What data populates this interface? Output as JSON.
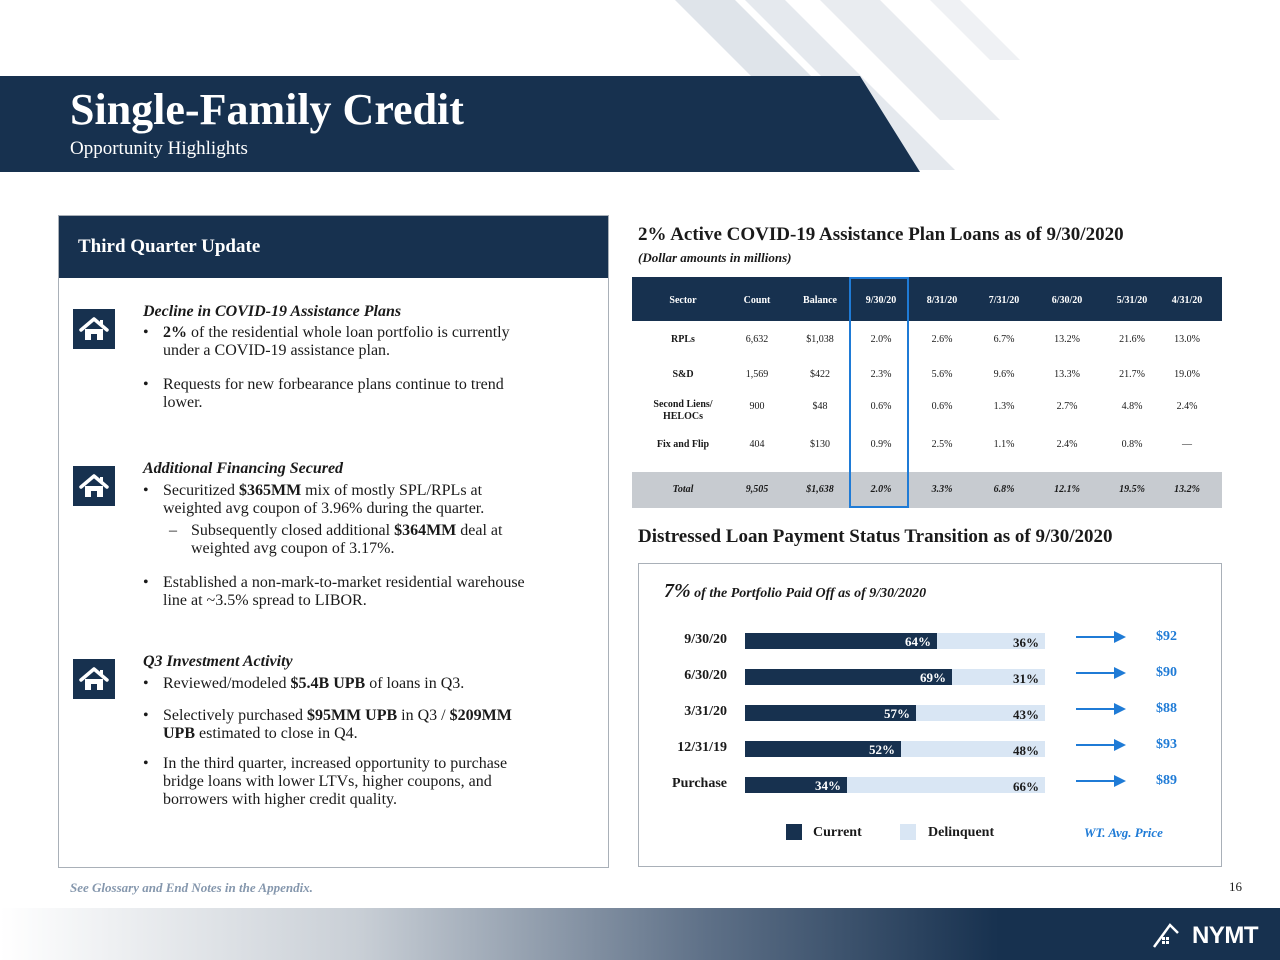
{
  "header": {
    "title": "Single-Family Credit",
    "subtitle": "Opportunity Highlights"
  },
  "left_panel": {
    "title": "Third Quarter Update",
    "sections": [
      {
        "title": "Decline in COVID-19 Assistance Plans",
        "icon": "home-icon",
        "b1_bold": "2%",
        "b1_rest": " of the residential whole loan portfolio is currently",
        "b1_line2": "under a COVID-19 assistance plan.",
        "b2_line1": "Requests for new forbearance plans continue to trend",
        "b2_line2": "lower."
      },
      {
        "title": "Additional Financing Secured",
        "icon": "home-icon",
        "b1_pre": "Securitized ",
        "b1_bold": "$365MM",
        "b1_rest": " mix of mostly SPL/RPLs at",
        "b1_line2": "weighted avg coupon of 3.96% during the quarter.",
        "s1_pre": "Subsequently closed additional ",
        "s1_bold": "$364MM",
        "s1_rest": " deal at",
        "s1_line2": "weighted avg coupon of 3.17%.",
        "b2_line1": "Established a non-mark-to-market residential warehouse",
        "b2_line2": "line at ~3.5% spread to LIBOR."
      },
      {
        "title": "Q3 Investment Activity",
        "icon": "home-icon",
        "b1_pre": "Reviewed/modeled ",
        "b1_bold": "$5.4B UPB",
        "b1_rest": " of loans in Q3.",
        "b2_pre": "Selectively purchased ",
        "b2_bold": "$95MM UPB",
        "b2_mid": " in Q3 / ",
        "b2_bold2": "$209MM",
        "b2_line2_bold": "UPB",
        "b2_line2_rest": " estimated to close in Q4.",
        "b3_line1": "In the third quarter, increased opportunity to purchase",
        "b3_line2": "bridge loans with lower LTVs, higher coupons, and",
        "b3_line3": "borrowers with higher credit quality."
      }
    ],
    "bullet": "•",
    "dash": "–"
  },
  "table": {
    "title": "2% Active COVID-19 Assistance Plan Loans as of 9/30/2020",
    "subtitle": "(Dollar amounts in millions)",
    "columns": [
      "Sector",
      "Count",
      "Balance",
      "9/30/20",
      "8/31/20",
      "7/31/20",
      "6/30/20",
      "5/31/20",
      "4/31/20"
    ],
    "rows": [
      [
        "RPLs",
        "6,632",
        "$1,038",
        "2.0%",
        "2.6%",
        "6.7%",
        "13.2%",
        "21.6%",
        "13.0%"
      ],
      [
        "S&D",
        "1,569",
        "$422",
        "2.3%",
        "5.6%",
        "9.6%",
        "13.3%",
        "21.7%",
        "19.0%"
      ],
      [
        "Second Liens/ HELOCs",
        "900",
        "$48",
        "0.6%",
        "0.6%",
        "1.3%",
        "2.7%",
        "4.8%",
        "2.4%"
      ],
      [
        "Fix and Flip",
        "404",
        "$130",
        "0.9%",
        "2.5%",
        "1.1%",
        "2.4%",
        "0.8%",
        "—"
      ]
    ],
    "sector_line1": "Second Liens/",
    "sector_line2": "HELOCs",
    "total": [
      "Total",
      "9,505",
      "$1,638",
      "2.0%",
      "3.3%",
      "6.8%",
      "12.1%",
      "19.5%",
      "13.2%"
    ]
  },
  "chart_data": {
    "type": "bar",
    "title": "Distressed Loan Payment Status Transition as of 9/30/2020",
    "note_big": "7%",
    "note_rest": " of the Portfolio Paid Off as of 9/30/2020",
    "categories": [
      "9/30/20",
      "6/30/20",
      "3/31/20",
      "12/31/19",
      "Purchase"
    ],
    "series": [
      {
        "name": "Current",
        "values": [
          64,
          69,
          57,
          52,
          34
        ],
        "labels": [
          "64%",
          "69%",
          "57%",
          "52%",
          "34%"
        ],
        "color": "#17314f"
      },
      {
        "name": "Delinquent",
        "values": [
          36,
          31,
          43,
          48,
          66
        ],
        "labels": [
          "36%",
          "31%",
          "43%",
          "48%",
          "66%"
        ],
        "color": "#d9e6f4"
      }
    ],
    "prices": [
      "$92",
      "$90",
      "$88",
      "$93",
      "$89"
    ],
    "price_label": "WT. Avg.  Price",
    "stacked": true,
    "orientation": "horizontal"
  },
  "footer": {
    "footnote": "See Glossary and End Notes in the Appendix.",
    "page_number": "16",
    "logo_text": "NYMT"
  },
  "colors": {
    "navy": "#17314f",
    "light_blue": "#d9e6f4",
    "accent_blue": "#1f7bd6"
  }
}
